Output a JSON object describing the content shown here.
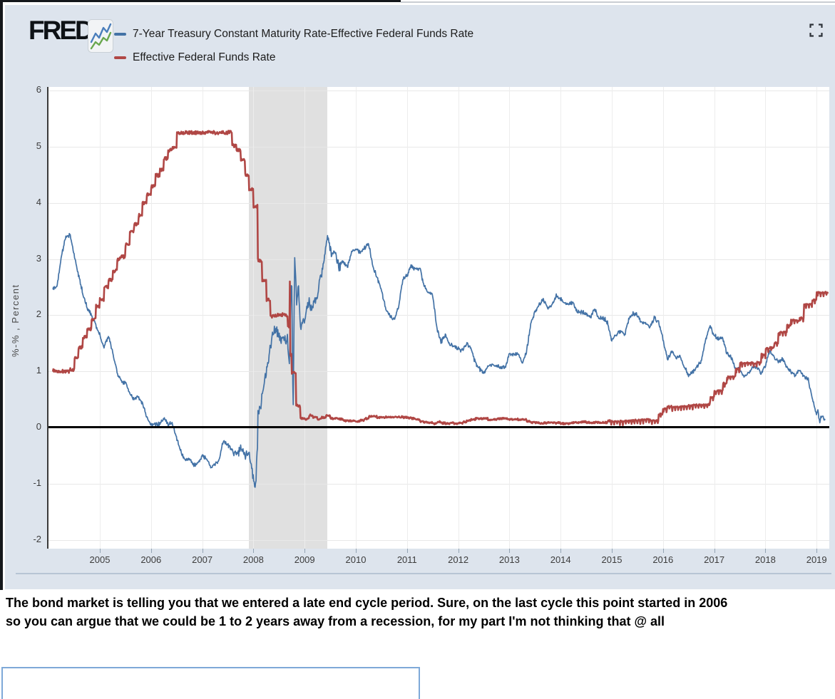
{
  "header": {
    "logo": "FRED",
    "registered": "®",
    "legend": [
      {
        "label": "7-Year Treasury Constant Maturity Rate-Effective Federal Funds Rate",
        "color": "#4372a6"
      },
      {
        "label": "Effective Federal Funds Rate",
        "color": "#b04745"
      }
    ]
  },
  "colors": {
    "panel_bg": "#dde4ed",
    "series_blue": "#4372a6",
    "series_red": "#b04745",
    "recession_band": "#e0e0e0",
    "zero_line": "#000000",
    "attachment_border": "#7ea9d8"
  },
  "chart_data": {
    "type": "line",
    "title": "",
    "xlabel": "",
    "ylabel": "%-% , Percent",
    "ylim": [
      -2,
      6
    ],
    "yticks": [
      6,
      5,
      4,
      3,
      2,
      1,
      0,
      -1,
      -2
    ],
    "xticks": [
      2005,
      2006,
      2007,
      2008,
      2009,
      2010,
      2011,
      2012,
      2013,
      2014,
      2015,
      2016,
      2017,
      2018,
      2019
    ],
    "x_range": [
      2004.083,
      2019.25
    ],
    "grid": true,
    "legend_position": "top-left",
    "zero_line_at": 0,
    "recession_band": [
      2007.917,
      2009.45
    ],
    "series": [
      {
        "name": "7-Year Treasury Constant Maturity Rate-Effective Federal Funds Rate",
        "color": "#4372a6",
        "style": "linear",
        "x_start": 2004.083,
        "x_step_months": 1,
        "noise": 0.045,
        "values": [
          2.46,
          2.53,
          3.06,
          3.39,
          3.44,
          3.08,
          2.73,
          2.39,
          2.14,
          2.02,
          1.83,
          1.65,
          1.43,
          1.63,
          1.35,
          0.99,
          0.81,
          0.8,
          0.62,
          0.5,
          0.55,
          0.42,
          0.19,
          0.06,
          0.04,
          0.06,
          0.17,
          0.06,
          0.08,
          -0.2,
          -0.43,
          -0.58,
          -0.56,
          -0.67,
          -0.64,
          -0.5,
          -0.55,
          -0.72,
          -0.64,
          -0.58,
          -0.22,
          -0.31,
          -0.41,
          -0.49,
          -0.36,
          -0.52,
          -0.45,
          -0.9,
          0.25,
          0.51,
          0.99,
          1.47,
          1.77,
          1.62,
          1.52,
          1.61,
          2.53,
          2.54,
          1.77,
          1.93,
          2.22,
          2.15,
          2.36,
          2.75,
          3.18,
          3.16,
          3.1,
          2.88,
          2.95,
          2.85,
          3.12,
          3.19,
          3.11,
          3.2,
          3.29,
          2.86,
          2.68,
          2.44,
          2.13,
          2.0,
          1.92,
          2.15,
          2.63,
          2.7,
          2.88,
          2.81,
          2.83,
          2.51,
          2.41,
          2.36,
          1.77,
          1.53,
          1.65,
          1.47,
          1.45,
          1.4,
          1.38,
          1.51,
          1.41,
          1.15,
          1.05,
          0.96,
          1.09,
          1.11,
          1.1,
          1.06,
          1.08,
          1.3,
          1.31,
          1.31,
          1.17,
          1.34,
          1.84,
          2.07,
          2.21,
          2.28,
          2.13,
          2.17,
          2.36,
          2.29,
          2.2,
          2.21,
          2.21,
          2.05,
          2.05,
          2.03,
          1.97,
          2.1,
          1.95,
          1.96,
          1.86,
          1.56,
          1.65,
          1.73,
          1.65,
          1.93,
          2.04,
          2.0,
          1.86,
          1.84,
          1.78,
          1.95,
          1.88,
          1.58,
          1.23,
          1.34,
          1.25,
          1.26,
          1.08,
          0.93,
          0.99,
          1.08,
          1.19,
          1.57,
          1.82,
          1.63,
          1.59,
          1.6,
          1.31,
          1.26,
          1.04,
          1.04,
          0.92,
          0.95,
          1.09,
          1.07,
          0.98,
          1.11,
          1.36,
          1.27,
          1.16,
          1.23,
          1.07,
          0.98,
          0.94,
          1.03,
          0.91,
          0.87,
          0.51,
          0.22,
          0.21,
          0.14
        ],
        "extra_points": [
          [
            2008.04,
            -1.08
          ],
          [
            2008.08,
            -0.3
          ],
          [
            2008.7,
            1.1
          ],
          [
            2008.735,
            2.55
          ],
          [
            2008.775,
            0.12
          ],
          [
            2008.805,
            3.05
          ],
          [
            2008.84,
            2.1
          ],
          [
            2008.875,
            2.62
          ],
          [
            2009.45,
            3.42
          ],
          [
            2019.02,
            0.34
          ],
          [
            2019.06,
            0.07
          ],
          [
            2019.12,
            0.18
          ]
        ]
      },
      {
        "name": "Effective Federal Funds Rate",
        "color": "#b04745",
        "style": "step",
        "x_start": 2004.083,
        "x_step_months": 1,
        "noise": 0.02,
        "values": [
          1.01,
          1.0,
          1.0,
          1.0,
          1.03,
          1.26,
          1.43,
          1.61,
          1.76,
          1.93,
          2.16,
          2.28,
          2.5,
          2.63,
          2.79,
          3.0,
          3.04,
          3.26,
          3.5,
          3.62,
          3.78,
          4.0,
          4.16,
          4.29,
          4.49,
          4.59,
          4.79,
          4.94,
          4.99,
          5.24,
          5.25,
          5.25,
          5.25,
          5.25,
          5.24,
          5.25,
          5.26,
          5.26,
          5.25,
          5.25,
          5.25,
          5.26,
          5.02,
          4.94,
          4.76,
          4.49,
          4.24,
          3.94,
          2.98,
          2.61,
          2.28,
          1.98,
          2.0,
          2.01,
          2.0,
          1.81,
          0.97,
          0.39,
          0.16,
          0.15,
          0.22,
          0.18,
          0.15,
          0.18,
          0.21,
          0.16,
          0.16,
          0.15,
          0.12,
          0.12,
          0.12,
          0.11,
          0.13,
          0.16,
          0.2,
          0.2,
          0.18,
          0.18,
          0.19,
          0.19,
          0.19,
          0.19,
          0.18,
          0.17,
          0.16,
          0.14,
          0.1,
          0.09,
          0.09,
          0.07,
          0.1,
          0.08,
          0.07,
          0.08,
          0.07,
          0.08,
          0.1,
          0.13,
          0.14,
          0.16,
          0.16,
          0.16,
          0.13,
          0.14,
          0.16,
          0.16,
          0.16,
          0.14,
          0.15,
          0.14,
          0.15,
          0.11,
          0.09,
          0.09,
          0.08,
          0.08,
          0.09,
          0.08,
          0.09,
          0.07,
          0.07,
          0.08,
          0.09,
          0.09,
          0.1,
          0.09,
          0.09,
          0.09,
          0.09,
          0.09,
          0.12,
          0.11,
          0.11,
          0.11,
          0.12,
          0.12,
          0.13,
          0.13,
          0.14,
          0.14,
          0.12,
          0.12,
          0.24,
          0.34,
          0.38,
          0.36,
          0.37,
          0.37,
          0.38,
          0.39,
          0.4,
          0.4,
          0.4,
          0.41,
          0.54,
          0.65,
          0.66,
          0.79,
          0.9,
          0.91,
          1.04,
          1.15,
          1.16,
          1.15,
          1.15,
          1.16,
          1.3,
          1.41,
          1.42,
          1.51,
          1.69,
          1.7,
          1.82,
          1.91,
          1.91,
          1.95,
          2.19,
          2.2,
          2.27,
          2.4,
          2.4,
          2.41
        ],
        "extra_points": [
          [
            2008.705,
            2.58
          ],
          [
            2008.72,
            1.3
          ]
        ]
      }
    ]
  },
  "caption": {
    "lines": [
      "The bond market is telling you that we entered a late end cycle period. Sure, on the last cycle this point started in 2006",
      "so you can argue that we could be 1 to 2 years away from a recession, for my part I'm not thinking that @ all"
    ]
  }
}
